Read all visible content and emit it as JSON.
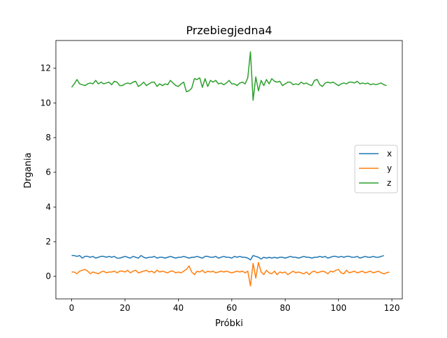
{
  "chart_data": {
    "type": "line",
    "title": "Przebiegjedna4",
    "xlabel": "Próbki",
    "ylabel": "Drgania",
    "xlim": [
      -5.9,
      123.9
    ],
    "ylim": [
      -1.3,
      13.6
    ],
    "xticks": [
      0,
      20,
      40,
      60,
      80,
      100,
      120
    ],
    "yticks": [
      0,
      2,
      4,
      6,
      8,
      10,
      12
    ],
    "grid": false,
    "legend_position": "center-right",
    "series": [
      {
        "name": "x",
        "color": "#1f77b4",
        "values": [
          1.2,
          1.2,
          1.15,
          1.2,
          1.05,
          1.15,
          1.15,
          1.1,
          1.15,
          1.05,
          1.1,
          1.15,
          1.15,
          1.1,
          1.15,
          1.1,
          1.15,
          1.05,
          1.05,
          1.1,
          1.15,
          1.1,
          1.05,
          1.15,
          1.1,
          1.05,
          1.2,
          1.1,
          1.05,
          1.1,
          1.1,
          1.15,
          1.05,
          1.1,
          1.1,
          1.05,
          1.1,
          1.15,
          1.1,
          1.05,
          1.1,
          1.1,
          1.15,
          1.1,
          1.05,
          1.1,
          1.1,
          1.15,
          1.1,
          1.05,
          1.15,
          1.15,
          1.1,
          1.1,
          1.15,
          1.05,
          1.1,
          1.15,
          1.1,
          1.1,
          1.05,
          1.15,
          1.1,
          1.15,
          1.1,
          1.1,
          1.05,
          0.95,
          1.2,
          1.15,
          1.1,
          1.0,
          1.1,
          1.05,
          1.1,
          1.05,
          1.1,
          1.05,
          1.1,
          1.1,
          1.05,
          1.1,
          1.15,
          1.1,
          1.1,
          1.05,
          1.1,
          1.15,
          1.1,
          1.1,
          1.05,
          1.1,
          1.1,
          1.15,
          1.1,
          1.15,
          1.05,
          1.1,
          1.15,
          1.15,
          1.1,
          1.15,
          1.1,
          1.15,
          1.15,
          1.1,
          1.1,
          1.15,
          1.05,
          1.1,
          1.15,
          1.1,
          1.1,
          1.15,
          1.1,
          1.1,
          1.15,
          1.2
        ]
      },
      {
        "name": "y",
        "color": "#ff7f0e",
        "values": [
          0.25,
          0.25,
          0.15,
          0.3,
          0.35,
          0.4,
          0.3,
          0.15,
          0.25,
          0.2,
          0.15,
          0.25,
          0.3,
          0.2,
          0.25,
          0.25,
          0.3,
          0.2,
          0.3,
          0.3,
          0.25,
          0.35,
          0.2,
          0.3,
          0.35,
          0.2,
          0.25,
          0.3,
          0.35,
          0.25,
          0.3,
          0.2,
          0.35,
          0.25,
          0.3,
          0.25,
          0.2,
          0.3,
          0.3,
          0.2,
          0.25,
          0.2,
          0.3,
          0.4,
          0.6,
          0.25,
          0.1,
          0.3,
          0.25,
          0.35,
          0.2,
          0.3,
          0.25,
          0.3,
          0.2,
          0.25,
          0.3,
          0.25,
          0.3,
          0.25,
          0.2,
          0.25,
          0.3,
          0.25,
          0.3,
          0.2,
          0.3,
          -0.55,
          0.75,
          -0.1,
          0.8,
          0.25,
          0.1,
          0.35,
          0.2,
          0.15,
          0.3,
          0.1,
          0.25,
          0.2,
          0.25,
          0.1,
          0.2,
          0.3,
          0.2,
          0.25,
          0.2,
          0.15,
          0.25,
          0.1,
          0.25,
          0.3,
          0.2,
          0.25,
          0.3,
          0.25,
          0.15,
          0.3,
          0.25,
          0.35,
          0.4,
          0.2,
          0.15,
          0.35,
          0.2,
          0.25,
          0.3,
          0.2,
          0.25,
          0.3,
          0.2,
          0.25,
          0.3,
          0.2,
          0.25,
          0.3,
          0.2,
          0.15,
          0.2,
          0.25
        ]
      },
      {
        "name": "z",
        "color": "#2ca02c",
        "values": [
          10.9,
          11.1,
          11.35,
          11.1,
          11.05,
          11.0,
          11.1,
          11.15,
          11.1,
          11.3,
          11.1,
          11.2,
          11.1,
          11.15,
          11.2,
          11.05,
          11.25,
          11.2,
          11.0,
          11.0,
          11.1,
          11.15,
          11.1,
          11.2,
          11.25,
          10.95,
          11.05,
          11.2,
          11.0,
          11.1,
          11.2,
          11.2,
          10.95,
          11.1,
          11.0,
          11.1,
          11.05,
          11.3,
          11.15,
          11.0,
          10.95,
          11.1,
          11.2,
          10.65,
          10.7,
          10.85,
          11.4,
          11.35,
          11.45,
          10.9,
          11.4,
          10.95,
          11.3,
          11.2,
          11.3,
          11.1,
          11.15,
          11.05,
          11.15,
          11.3,
          11.1,
          11.1,
          11.0,
          11.15,
          11.2,
          11.1,
          11.45,
          12.95,
          10.15,
          11.5,
          10.7,
          11.3,
          11.0,
          11.35,
          11.1,
          11.4,
          11.25,
          11.2,
          11.25,
          11.0,
          11.1,
          11.2,
          11.2,
          11.05,
          11.1,
          11.05,
          11.2,
          11.1,
          11.15,
          11.05,
          11.0,
          11.3,
          11.35,
          11.05,
          10.95,
          11.15,
          11.2,
          11.15,
          11.2,
          11.1,
          11.0,
          11.1,
          11.15,
          11.1,
          11.2,
          11.2,
          11.15,
          11.25,
          11.1,
          11.15,
          11.1,
          11.15,
          11.05,
          11.1,
          11.05,
          11.1,
          11.15,
          11.05,
          11.0
        ]
      }
    ]
  }
}
